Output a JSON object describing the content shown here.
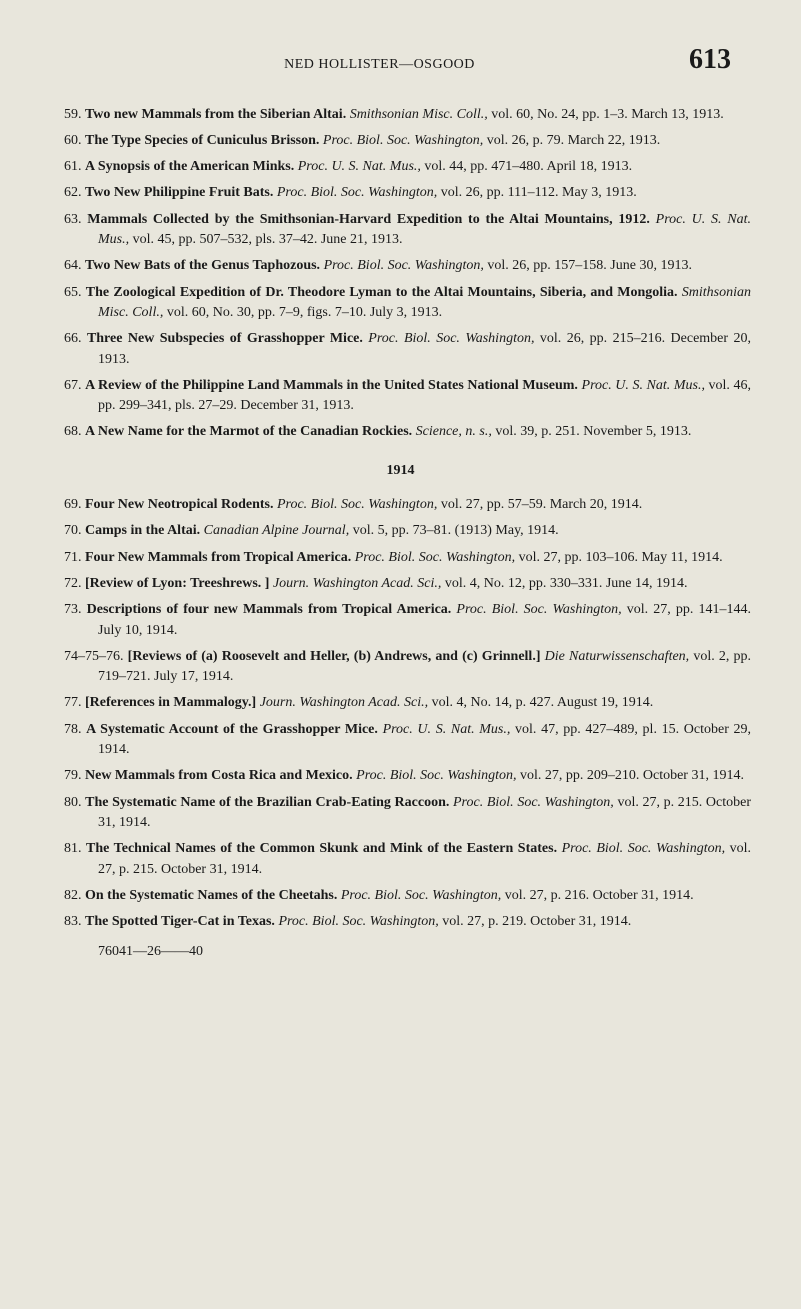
{
  "header": {
    "title": "NED HOLLISTER—OSGOOD",
    "page_number": "613"
  },
  "entries_before_1914": [
    {
      "num": "59.",
      "title": "Two new Mammals from the Siberian Altai.",
      "pub": "Smithsonian Misc. Coll.,",
      "rest": " vol. 60, No. 24, pp. 1–3. March 13, 1913."
    },
    {
      "num": "60.",
      "title": "The Type Species of Cuniculus Brisson.",
      "pub": "Proc. Biol. Soc. Washington,",
      "rest": " vol. 26, p. 79. March 22, 1913."
    },
    {
      "num": "61.",
      "title": "A Synopsis of the American Minks.",
      "pub": "Proc. U. S. Nat. Mus.,",
      "rest": " vol. 44, pp. 471–480. April 18, 1913."
    },
    {
      "num": "62.",
      "title": "Two New Philippine Fruit Bats.",
      "pub": "Proc. Biol. Soc. Washington,",
      "rest": " vol. 26, pp. 111–112. May 3, 1913."
    },
    {
      "num": "63.",
      "title": "Mammals Collected by the Smithsonian-Harvard Expedition to the Altai Mountains, 1912.",
      "pub": "Proc. U. S. Nat. Mus.,",
      "rest": " vol. 45, pp. 507–532, pls. 37–42. June 21, 1913."
    },
    {
      "num": "64.",
      "title": "Two New Bats of the Genus Taphozous.",
      "pub": "Proc. Biol. Soc. Washington,",
      "rest": " vol. 26, pp. 157–158. June 30, 1913."
    },
    {
      "num": "65.",
      "title": "The Zoological Expedition of Dr. Theodore Lyman to the Altai Mountains, Siberia, and Mongolia.",
      "pub": "Smithsonian Misc. Coll.,",
      "rest": " vol. 60, No. 30, pp. 7–9, figs. 7–10. July 3, 1913."
    },
    {
      "num": "66.",
      "title": "Three New Subspecies of Grasshopper Mice.",
      "pub": "Proc. Biol. Soc. Washington,",
      "rest": " vol. 26, pp. 215–216. December 20, 1913."
    },
    {
      "num": "67.",
      "title": "A Review of the Philippine Land Mammals in the United States National Museum.",
      "pub": "Proc. U. S. Nat. Mus.,",
      "rest": " vol. 46, pp. 299–341, pls. 27–29. December 31, 1913."
    },
    {
      "num": "68.",
      "title": "A New Name for the Marmot of the Canadian Rockies.",
      "pub": "Science, n. s.,",
      "rest": " vol. 39, p. 251. November 5, 1913."
    }
  ],
  "year_divider": "1914",
  "entries_after_1914": [
    {
      "num": "69.",
      "title": "Four New Neotropical Rodents.",
      "pub": "Proc. Biol. Soc. Washington,",
      "rest": " vol. 27, pp. 57–59. March 20, 1914."
    },
    {
      "num": "70.",
      "title": "Camps in the Altai.",
      "pub": "Canadian Alpine Journal,",
      "rest": " vol. 5, pp. 73–81. (1913) May, 1914."
    },
    {
      "num": "71.",
      "title": "Four New Mammals from Tropical America.",
      "pub": "Proc. Biol. Soc. Washington,",
      "rest": " vol. 27, pp. 103–106. May 11, 1914."
    },
    {
      "num": "72.",
      "title": "[Review of Lyon: Treeshrews. ]",
      "pub": "Journ. Washington Acad. Sci.,",
      "rest": " vol. 4, No. 12, pp. 330–331. June 14, 1914."
    },
    {
      "num": "73.",
      "title": "Descriptions of four new Mammals from Tropical America.",
      "pub": "Proc. Biol. Soc. Washington,",
      "rest": " vol. 27, pp. 141–144. July 10, 1914."
    },
    {
      "num": "74–75–76.",
      "title": "[Reviews of (a) Roosevelt and Heller, (b) Andrews, and (c) Grinnell.]",
      "pub": "Die Naturwissenschaften,",
      "rest": " vol. 2, pp. 719–721. July 17, 1914."
    },
    {
      "num": "77.",
      "title": "[References in Mammalogy.]",
      "pub": "Journ. Washington Acad. Sci.,",
      "rest": " vol. 4, No. 14, p. 427. August 19, 1914."
    },
    {
      "num": "78.",
      "title": "A Systematic Account of the Grasshopper Mice.",
      "pub": "Proc. U. S. Nat. Mus.,",
      "rest": " vol. 47, pp. 427–489, pl. 15. October 29, 1914."
    },
    {
      "num": "79.",
      "title": "New Mammals from Costa Rica and Mexico.",
      "pub": "Proc. Biol. Soc. Washington,",
      "rest": " vol. 27, pp. 209–210. October 31, 1914."
    },
    {
      "num": "80.",
      "title": "The Systematic Name of the Brazilian Crab-Eating Raccoon.",
      "pub": "Proc. Biol. Soc. Washington,",
      "rest": " vol. 27, p. 215. October 31, 1914."
    },
    {
      "num": "81.",
      "title": "The Technical Names of the Common Skunk and Mink of the Eastern States.",
      "pub": "Proc. Biol. Soc. Washington,",
      "rest": " vol. 27, p. 215. October 31, 1914."
    },
    {
      "num": "82.",
      "title": "On the Systematic Names of the Cheetahs.",
      "pub": "Proc. Biol. Soc. Washington,",
      "rest": " vol. 27, p. 216. October 31, 1914."
    },
    {
      "num": "83.",
      "title": "The Spotted Tiger-Cat in Texas.",
      "pub": "Proc. Biol. Soc. Washington,",
      "rest": " vol. 27, p. 219. October 31, 1914."
    }
  ],
  "footer": "76041—26——40"
}
